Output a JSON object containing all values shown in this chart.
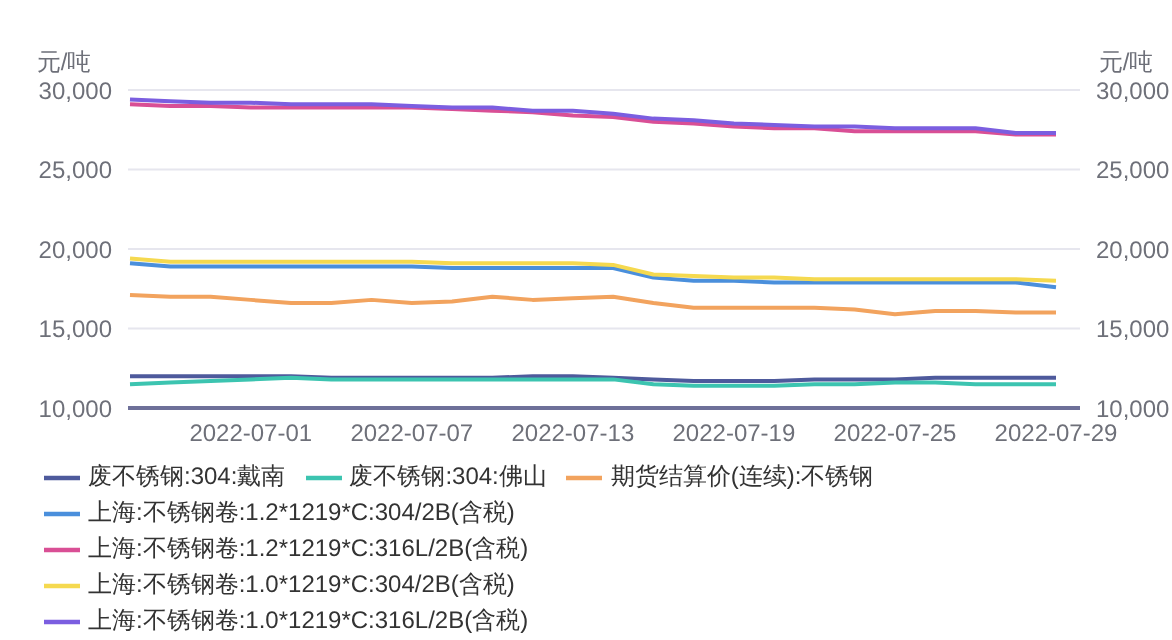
{
  "chart_data": {
    "type": "line",
    "ylabel": "元/吨",
    "y2label": "元/吨",
    "categories": [
      null,
      null,
      null,
      "2022-07-01",
      null,
      null,
      null,
      "2022-07-07",
      null,
      null,
      null,
      "2022-07-13",
      null,
      null,
      null,
      "2022-07-19",
      null,
      null,
      null,
      "2022-07-25",
      null,
      null,
      null,
      "2022-07-29"
    ],
    "ylim": [
      10000,
      30000
    ],
    "yticks": [
      {
        "value": 10000,
        "label": "10,000"
      },
      {
        "value": 15000,
        "label": "15,000"
      },
      {
        "value": 20000,
        "label": "20,000"
      },
      {
        "value": 25000,
        "label": "25,000"
      },
      {
        "value": 30000,
        "label": "30,000"
      }
    ],
    "y2lim": [
      10000,
      30000
    ],
    "y2ticks": [
      {
        "value": 10000,
        "label": "10,000"
      },
      {
        "value": 15000,
        "label": "15,000"
      },
      {
        "value": 20000,
        "label": "20,000"
      },
      {
        "value": 25000,
        "label": "25,000"
      },
      {
        "value": 30000,
        "label": "30,000"
      }
    ],
    "grid": "y",
    "legend": "bottom",
    "marker": "none",
    "line_style": "solid",
    "series": [
      {
        "name": "废不锈钢:304:戴南",
        "color": "#4e5a9c",
        "values": [
          12000,
          12000,
          12000,
          12000,
          12000,
          11900,
          11900,
          11900,
          11900,
          11900,
          12000,
          12000,
          11900,
          11800,
          11700,
          11700,
          11700,
          11800,
          11800,
          11800,
          11900,
          11900,
          11900,
          11900
        ]
      },
      {
        "name": "废不锈钢:304:佛山",
        "color": "#3cc4b0",
        "values": [
          11500,
          11600,
          11700,
          11800,
          11900,
          11800,
          11800,
          11800,
          11800,
          11800,
          11800,
          11800,
          11800,
          11500,
          11400,
          11400,
          11400,
          11500,
          11500,
          11600,
          11600,
          11500,
          11500,
          11500
        ]
      },
      {
        "name": "期货结算价(连续):不锈钢",
        "color": "#f2a35e",
        "values": [
          17100,
          17000,
          17000,
          16800,
          16600,
          16600,
          16800,
          16600,
          16700,
          17000,
          16800,
          16900,
          17000,
          16600,
          16300,
          16300,
          16300,
          16300,
          16200,
          15900,
          16100,
          16100,
          16000,
          16000
        ]
      },
      {
        "name": "上海:不锈钢卷:1.2*1219*C:304/2B(含税)",
        "color": "#4a8fdc",
        "values": [
          19100,
          18900,
          18900,
          18900,
          18900,
          18900,
          18900,
          18900,
          18800,
          18800,
          18800,
          18800,
          18800,
          18200,
          18000,
          18000,
          17900,
          17900,
          17900,
          17900,
          17900,
          17900,
          17900,
          17600
        ]
      },
      {
        "name": "上海:不锈钢卷:1.2*1219*C:316L/2B(含税)",
        "color": "#d94f95",
        "values": [
          29100,
          29000,
          29000,
          28900,
          28900,
          28900,
          28900,
          28900,
          28800,
          28700,
          28600,
          28400,
          28300,
          28000,
          27900,
          27700,
          27600,
          27600,
          27400,
          27400,
          27400,
          27400,
          27200,
          27200
        ]
      },
      {
        "name": "上海:不锈钢卷:1.0*1219*C:304/2B(含税)",
        "color": "#f5d94f",
        "values": [
          19400,
          19200,
          19200,
          19200,
          19200,
          19200,
          19200,
          19200,
          19100,
          19100,
          19100,
          19100,
          19000,
          18400,
          18300,
          18200,
          18200,
          18100,
          18100,
          18100,
          18100,
          18100,
          18100,
          18000
        ]
      },
      {
        "name": "上海:不锈钢卷:1.0*1219*C:316L/2B(含税)",
        "color": "#7b5ee0",
        "values": [
          29400,
          29300,
          29200,
          29200,
          29100,
          29100,
          29100,
          29000,
          28900,
          28900,
          28700,
          28700,
          28500,
          28200,
          28100,
          27900,
          27800,
          27700,
          27700,
          27600,
          27600,
          27600,
          27300,
          27300
        ]
      }
    ]
  }
}
